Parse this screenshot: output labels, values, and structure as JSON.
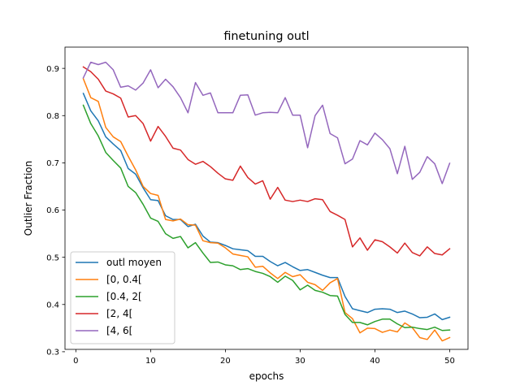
{
  "chart_data": {
    "type": "line",
    "title": "finetuning outl",
    "xlabel": "epochs",
    "ylabel": "Outlier Fraction",
    "xlim": [
      -1.45,
      52.45
    ],
    "ylim": [
      0.305,
      0.945
    ],
    "xticks": [
      0,
      10,
      20,
      30,
      40,
      50
    ],
    "yticks": [
      0.3,
      0.4,
      0.5,
      0.6,
      0.7,
      0.8,
      0.9
    ],
    "grid": false,
    "legend_position": "lower-left",
    "x": [
      1,
      2,
      3,
      4,
      5,
      6,
      7,
      8,
      9,
      10,
      11,
      12,
      13,
      14,
      15,
      16,
      17,
      18,
      19,
      20,
      21,
      22,
      23,
      24,
      25,
      26,
      27,
      28,
      29,
      30,
      31,
      32,
      33,
      34,
      35,
      36,
      37,
      38,
      39,
      40,
      41,
      42,
      43,
      44,
      45,
      46,
      47,
      48,
      49,
      50
    ],
    "series": [
      {
        "name": "outl moyen",
        "color": "#1f77b4",
        "values": [
          0.847,
          0.81,
          0.789,
          0.755,
          0.74,
          0.726,
          0.688,
          0.676,
          0.647,
          0.622,
          0.62,
          0.588,
          0.58,
          0.58,
          0.565,
          0.57,
          0.545,
          0.532,
          0.531,
          0.525,
          0.518,
          0.516,
          0.514,
          0.502,
          0.502,
          0.491,
          0.482,
          0.489,
          0.48,
          0.472,
          0.474,
          0.468,
          0.462,
          0.457,
          0.457,
          0.417,
          0.391,
          0.387,
          0.383,
          0.39,
          0.391,
          0.39,
          0.383,
          0.386,
          0.38,
          0.372,
          0.373,
          0.38,
          0.368,
          0.373
        ]
      },
      {
        "name": "[0, 0.4[",
        "color": "#ff7f0e",
        "values": [
          0.878,
          0.838,
          0.83,
          0.775,
          0.755,
          0.745,
          0.714,
          0.685,
          0.65,
          0.635,
          0.631,
          0.58,
          0.577,
          0.581,
          0.569,
          0.568,
          0.535,
          0.531,
          0.53,
          0.52,
          0.507,
          0.504,
          0.501,
          0.479,
          0.481,
          0.467,
          0.455,
          0.468,
          0.459,
          0.463,
          0.447,
          0.442,
          0.43,
          0.446,
          0.455,
          0.383,
          0.37,
          0.34,
          0.35,
          0.349,
          0.341,
          0.346,
          0.342,
          0.361,
          0.351,
          0.33,
          0.326,
          0.346,
          0.323,
          0.33
        ]
      },
      {
        "name": "[0.4, 2[",
        "color": "#2ca02c",
        "values": [
          0.822,
          0.783,
          0.757,
          0.722,
          0.705,
          0.689,
          0.65,
          0.637,
          0.612,
          0.583,
          0.576,
          0.55,
          0.54,
          0.544,
          0.52,
          0.531,
          0.509,
          0.489,
          0.49,
          0.484,
          0.482,
          0.474,
          0.476,
          0.47,
          0.466,
          0.459,
          0.447,
          0.46,
          0.451,
          0.431,
          0.441,
          0.43,
          0.426,
          0.419,
          0.418,
          0.379,
          0.362,
          0.362,
          0.357,
          0.364,
          0.369,
          0.369,
          0.359,
          0.351,
          0.352,
          0.349,
          0.347,
          0.352,
          0.345,
          0.346
        ]
      },
      {
        "name": "[2, 4[",
        "color": "#d62728",
        "values": [
          0.903,
          0.893,
          0.877,
          0.852,
          0.846,
          0.837,
          0.797,
          0.8,
          0.783,
          0.746,
          0.777,
          0.756,
          0.731,
          0.727,
          0.707,
          0.697,
          0.703,
          0.692,
          0.678,
          0.666,
          0.663,
          0.693,
          0.669,
          0.655,
          0.662,
          0.623,
          0.648,
          0.621,
          0.618,
          0.621,
          0.618,
          0.624,
          0.622,
          0.597,
          0.589,
          0.58,
          0.522,
          0.541,
          0.515,
          0.537,
          0.533,
          0.522,
          0.509,
          0.53,
          0.51,
          0.503,
          0.522,
          0.508,
          0.505,
          0.518
        ]
      },
      {
        "name": "[4, 6[",
        "color": "#9467bd",
        "values": [
          0.88,
          0.913,
          0.908,
          0.913,
          0.897,
          0.86,
          0.863,
          0.854,
          0.869,
          0.897,
          0.859,
          0.877,
          0.861,
          0.838,
          0.806,
          0.87,
          0.843,
          0.848,
          0.806,
          0.806,
          0.806,
          0.843,
          0.844,
          0.801,
          0.806,
          0.807,
          0.806,
          0.838,
          0.801,
          0.801,
          0.732,
          0.8,
          0.822,
          0.762,
          0.753,
          0.698,
          0.708,
          0.747,
          0.738,
          0.763,
          0.749,
          0.73,
          0.677,
          0.735,
          0.665,
          0.68,
          0.713,
          0.698,
          0.656,
          0.699
        ]
      }
    ]
  }
}
